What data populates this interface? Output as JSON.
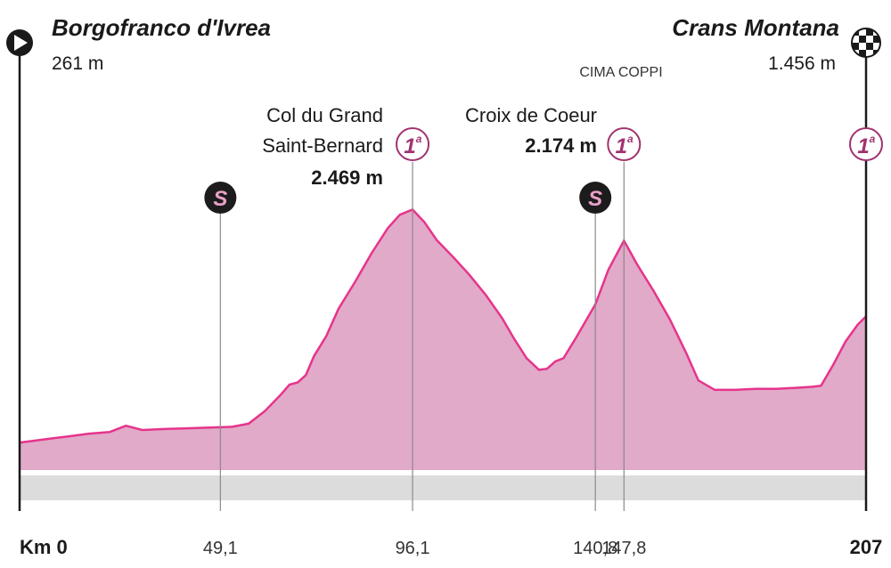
{
  "chart_data": {
    "type": "area",
    "start": {
      "name": "Borgofranco d'Ivrea",
      "altitude": "261 m",
      "km_label": "Km 0"
    },
    "finish": {
      "name": "Crans Montana",
      "altitude": "1.456 m",
      "km_label": "207"
    },
    "climbs": [
      {
        "name_lines": [
          "Col du Grand",
          "Saint-Bernard"
        ],
        "altitude": "2.469 m",
        "category": "1",
        "category_suffix": "a",
        "km": 96.1,
        "km_label": "96,1",
        "cima_coppi": ""
      },
      {
        "name_lines": [
          "Croix de Coeur"
        ],
        "altitude": "2.174 m",
        "category": "1",
        "category_suffix": "a",
        "km": 147.8,
        "km_label": "147,8",
        "cima_coppi": "CIMA COPPI"
      },
      {
        "name_lines": [],
        "altitude": "",
        "category": "1",
        "category_suffix": "a",
        "km": 207,
        "km_label": "",
        "cima_coppi": ""
      }
    ],
    "sprints": [
      {
        "label": "S",
        "km": 49.1,
        "km_label": "49,1"
      },
      {
        "label": "S",
        "km": 140.8,
        "km_label": "140,8"
      }
    ],
    "x": [
      0,
      3,
      8,
      12,
      17,
      22,
      26,
      30,
      36,
      40,
      44,
      48,
      52,
      56,
      60,
      64,
      66,
      68,
      70,
      72,
      75,
      78,
      82,
      86,
      90,
      93,
      96.1,
      99,
      102,
      106,
      110,
      114,
      118,
      121,
      124,
      127,
      129,
      131,
      133,
      136,
      140.8,
      144,
      147.8,
      151,
      155,
      159,
      163,
      166,
      170,
      175,
      180,
      185,
      190,
      194,
      196,
      199,
      202,
      205,
      207
    ],
    "y": [
      261,
      275,
      300,
      320,
      345,
      360,
      420,
      380,
      390,
      395,
      400,
      405,
      410,
      440,
      560,
      720,
      810,
      830,
      900,
      1080,
      1270,
      1530,
      1780,
      2050,
      2290,
      2420,
      2469,
      2350,
      2180,
      2020,
      1850,
      1660,
      1440,
      1240,
      1060,
      950,
      960,
      1030,
      1060,
      1250,
      1570,
      1900,
      2174,
      1950,
      1700,
      1430,
      1110,
      850,
      760,
      760,
      770,
      770,
      780,
      790,
      800,
      1000,
      1220,
      1380,
      1456
    ],
    "xlim": [
      0,
      207
    ],
    "ylim": [
      0,
      2700
    ],
    "fill_color": "#e1aac8",
    "line_color": "#e6348c",
    "marker_dark": "#1c1c1c",
    "marker_text_color": "#e9a0c8",
    "ground_color": "#dcdcdc"
  }
}
